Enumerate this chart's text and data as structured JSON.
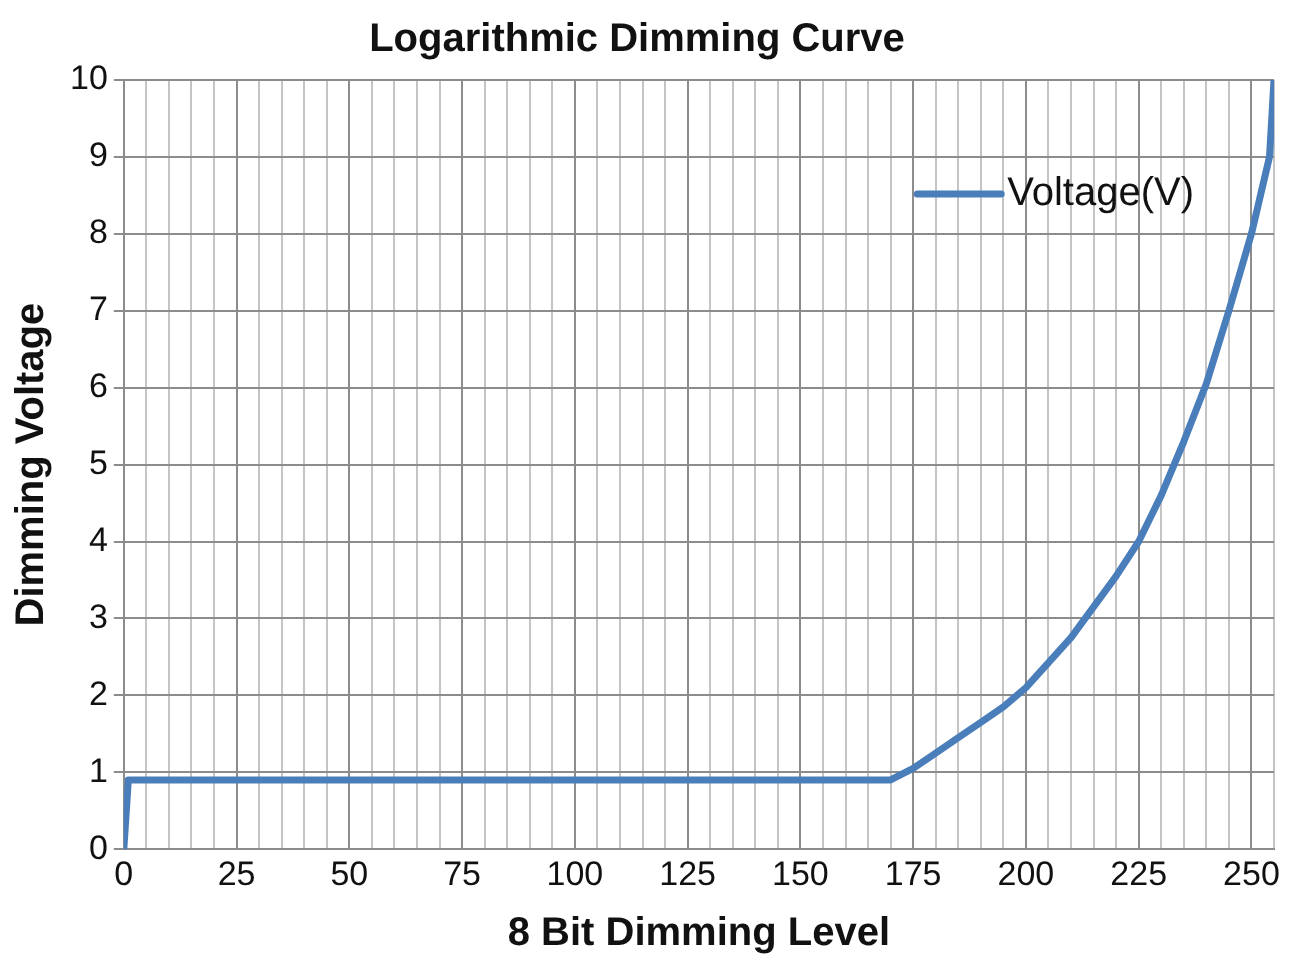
{
  "chart_data": {
    "type": "line",
    "title": "Logarithmic Dimming Curve",
    "xlabel": "8 Bit Dimming Level",
    "ylabel": "Dimming Voltage",
    "series": [
      {
        "name": "Voltage(V)",
        "color": "#4a7ebb",
        "x": [
          0,
          1,
          170,
          175,
          180,
          185,
          190,
          195,
          200,
          210,
          220,
          225,
          230,
          235,
          240,
          245,
          250,
          254,
          255
        ],
        "values": [
          0,
          0.9,
          0.9,
          1.05,
          1.25,
          1.45,
          1.65,
          1.85,
          2.1,
          2.75,
          3.55,
          4.0,
          4.6,
          5.3,
          6.05,
          7.0,
          8.0,
          9.0,
          10
        ]
      }
    ],
    "xlim": [
      0,
      255
    ],
    "xticks": [
      0,
      {
        "value": 5,
        "label": null
      },
      {
        "value": 10,
        "label": null
      },
      {
        "value": 15,
        "label": null
      },
      {
        "value": 20,
        "label": null
      },
      25,
      {
        "value": 30,
        "label": null
      },
      {
        "value": 35,
        "label": null
      },
      {
        "value": 40,
        "label": null
      },
      {
        "value": 45,
        "label": null
      },
      50,
      {
        "value": 55,
        "label": null
      },
      {
        "value": 60,
        "label": null
      },
      {
        "value": 65,
        "label": null
      },
      {
        "value": 70,
        "label": null
      },
      75,
      {
        "value": 80,
        "label": null
      },
      {
        "value": 85,
        "label": null
      },
      {
        "value": 90,
        "label": null
      },
      {
        "value": 95,
        "label": null
      },
      100,
      {
        "value": 105,
        "label": null
      },
      {
        "value": 110,
        "label": null
      },
      {
        "value": 115,
        "label": null
      },
      {
        "value": 120,
        "label": null
      },
      125,
      {
        "value": 130,
        "label": null
      },
      {
        "value": 135,
        "label": null
      },
      {
        "value": 140,
        "label": null
      },
      {
        "value": 145,
        "label": null
      },
      150,
      {
        "value": 155,
        "label": null
      },
      {
        "value": 160,
        "label": null
      },
      {
        "value": 165,
        "label": null
      },
      {
        "value": 170,
        "label": null
      },
      175,
      {
        "value": 180,
        "label": null
      },
      {
        "value": 185,
        "label": null
      },
      {
        "value": 190,
        "label": null
      },
      {
        "value": 195,
        "label": null
      },
      200,
      {
        "value": 205,
        "label": null
      },
      {
        "value": 210,
        "label": null
      },
      {
        "value": 215,
        "label": null
      },
      {
        "value": 220,
        "label": null
      },
      225,
      {
        "value": 230,
        "label": null
      },
      {
        "value": 235,
        "label": null
      },
      {
        "value": 240,
        "label": null
      },
      {
        "value": 245,
        "label": null
      },
      250,
      {
        "value": 255,
        "label": null
      }
    ],
    "ylim": [
      0,
      10
    ],
    "yticks": [
      0,
      1,
      2,
      3,
      4,
      5,
      6,
      7,
      8,
      9,
      10
    ],
    "grid": true,
    "legend": "top right",
    "marker": "none",
    "line_style": "solid"
  }
}
